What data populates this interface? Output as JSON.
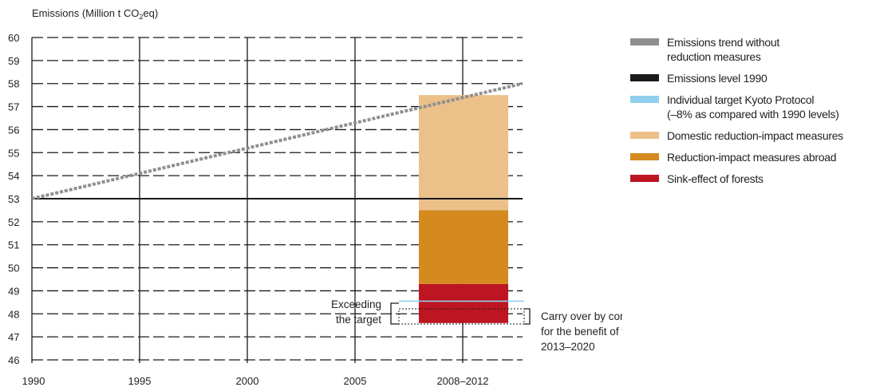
{
  "chart_data": {
    "type": "bar",
    "ylabel_prefix": "Emissions (Million t CO",
    "ylabel_sub": "2",
    "ylabel_suffix": "eq)",
    "ylim": [
      46,
      60
    ],
    "yticks": [
      60,
      59,
      58,
      57,
      56,
      55,
      54,
      53,
      52,
      51,
      50,
      49,
      48,
      47,
      46
    ],
    "xticks": [
      "1990",
      "1995",
      "2000",
      "2005",
      "2008–2012"
    ],
    "xlim": [
      1990,
      2012
    ],
    "grid": true,
    "trend_line": {
      "x": [
        1990,
        2012
      ],
      "y": [
        53,
        58
      ]
    },
    "level_1990": 53,
    "kyoto_target": 48.55,
    "stacked_bar": {
      "category": "2008–2012",
      "segments": [
        {
          "key": "forests",
          "from": 47.6,
          "to": 49.3
        },
        {
          "key": "abroad",
          "from": 49.3,
          "to": 52.5
        },
        {
          "key": "domestic",
          "from": 52.5,
          "to": 57.5
        }
      ]
    },
    "annotations": {
      "exceeding": [
        "Exceeding",
        "the target"
      ],
      "carry_over": [
        "Carry over by companies",
        "for the benefit of the period",
        "2013–2020"
      ]
    },
    "colors": {
      "trend": "#8f8f8f",
      "level_1990": "#1a1a1a",
      "target": "#8fd0ee",
      "domestic": "#ecc089",
      "abroad": "#d48a1e",
      "forests": "#bd1522",
      "grid": "#1a1a1a"
    }
  },
  "legend": [
    {
      "key": "trend",
      "lines": [
        "Emissions trend without",
        "reduction measures"
      ],
      "color": "#8f8f8f"
    },
    {
      "key": "level",
      "lines": [
        "Emissions level 1990"
      ],
      "color": "#1a1a1a"
    },
    {
      "key": "target",
      "lines": [
        "Individual target Kyoto Protocol",
        "(–8% as compared with 1990 levels)"
      ],
      "color": "#8fd0ee"
    },
    {
      "key": "domestic",
      "lines": [
        "Domestic reduction-impact measures"
      ],
      "color": "#ecc089"
    },
    {
      "key": "abroad",
      "lines": [
        "Reduction-impact measures abroad"
      ],
      "color": "#d48a1e"
    },
    {
      "key": "forests",
      "lines": [
        "Sink-effect of forests"
      ],
      "color": "#bd1522"
    }
  ]
}
